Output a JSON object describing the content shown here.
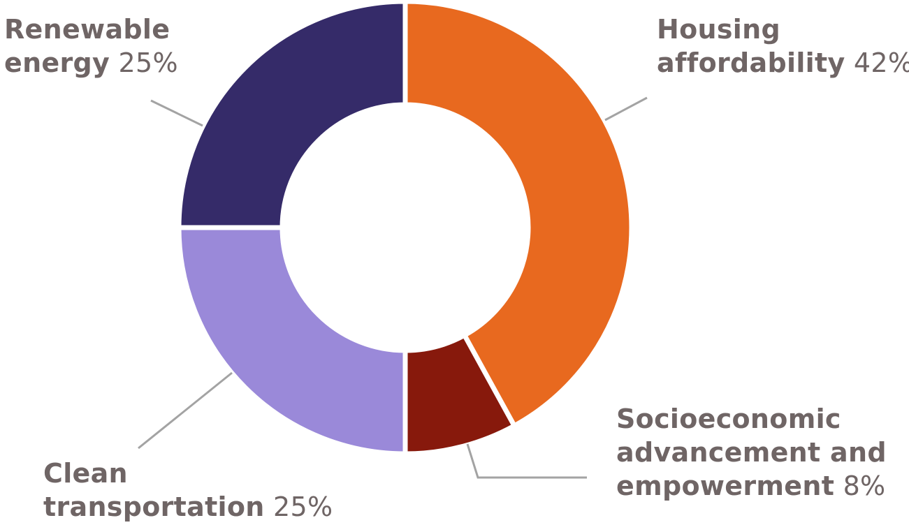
{
  "chart_data": {
    "type": "pie",
    "subtype": "donut",
    "slices": [
      {
        "label": "Housing affordability",
        "value": 42,
        "color": "#e8691f"
      },
      {
        "label": "Socioeconomic advancement and empowerment",
        "value": 8,
        "color": "#87190c"
      },
      {
        "label": "Clean transportation",
        "value": 25,
        "color": "#9a89d9"
      },
      {
        "label": "Renewable energy",
        "value": 25,
        "color": "#352b69"
      }
    ],
    "unit": "%"
  },
  "labels": {
    "renewable": {
      "name_line1": "Renewable",
      "name_line2": "energy",
      "pct": "25%"
    },
    "housing": {
      "name_line1": "Housing",
      "name_line2": "affordability",
      "pct": "42%"
    },
    "socio": {
      "name_line1": "Socioeconomic",
      "name_line2": "advancement and",
      "name_line3": "empowerment",
      "pct": "8%"
    },
    "clean": {
      "name_line1": "Clean",
      "name_line2": "transportation",
      "pct": "25%"
    }
  }
}
